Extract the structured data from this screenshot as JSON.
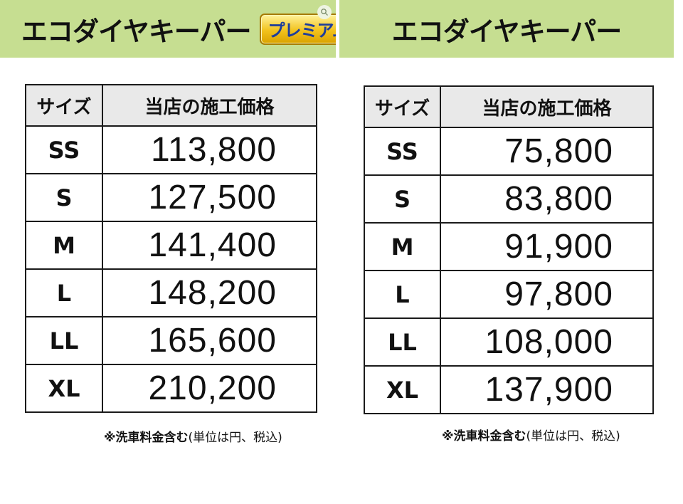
{
  "left": {
    "title": "エコダイヤキーパー",
    "badge": "プレミアム",
    "headers": {
      "size": "サイズ",
      "price": "当店の施工価格"
    },
    "rows": [
      {
        "size": "SS",
        "price": "113,800"
      },
      {
        "size": "S",
        "price": "127,500"
      },
      {
        "size": "M",
        "price": "141,400"
      },
      {
        "size": "L",
        "price": "148,200"
      },
      {
        "size": "LL",
        "price": "165,600"
      },
      {
        "size": "XL",
        "price": "210,200"
      }
    ],
    "note_bold": "※洗車料金含む",
    "note_rest": "(単位は円、税込)"
  },
  "right": {
    "title": "エコダイヤキーパー",
    "headers": {
      "size": "サイズ",
      "price": "当店の施工価格"
    },
    "rows": [
      {
        "size": "SS",
        "price": "75,800"
      },
      {
        "size": "S",
        "price": "83,800"
      },
      {
        "size": "M",
        "price": "91,900"
      },
      {
        "size": "L",
        "price": "97,800"
      },
      {
        "size": "LL",
        "price": "108,000"
      },
      {
        "size": "XL",
        "price": "137,900"
      }
    ],
    "note_bold": "※洗車料金含む",
    "note_rest": "(単位は円、税込)"
  },
  "colors": {
    "banner": "#c6de91",
    "badge": "#f2c21c",
    "badge_text": "#1d3d9c",
    "header_bg": "#e9e9e9"
  },
  "icons": {
    "corner": "zoom-lens-icon"
  }
}
